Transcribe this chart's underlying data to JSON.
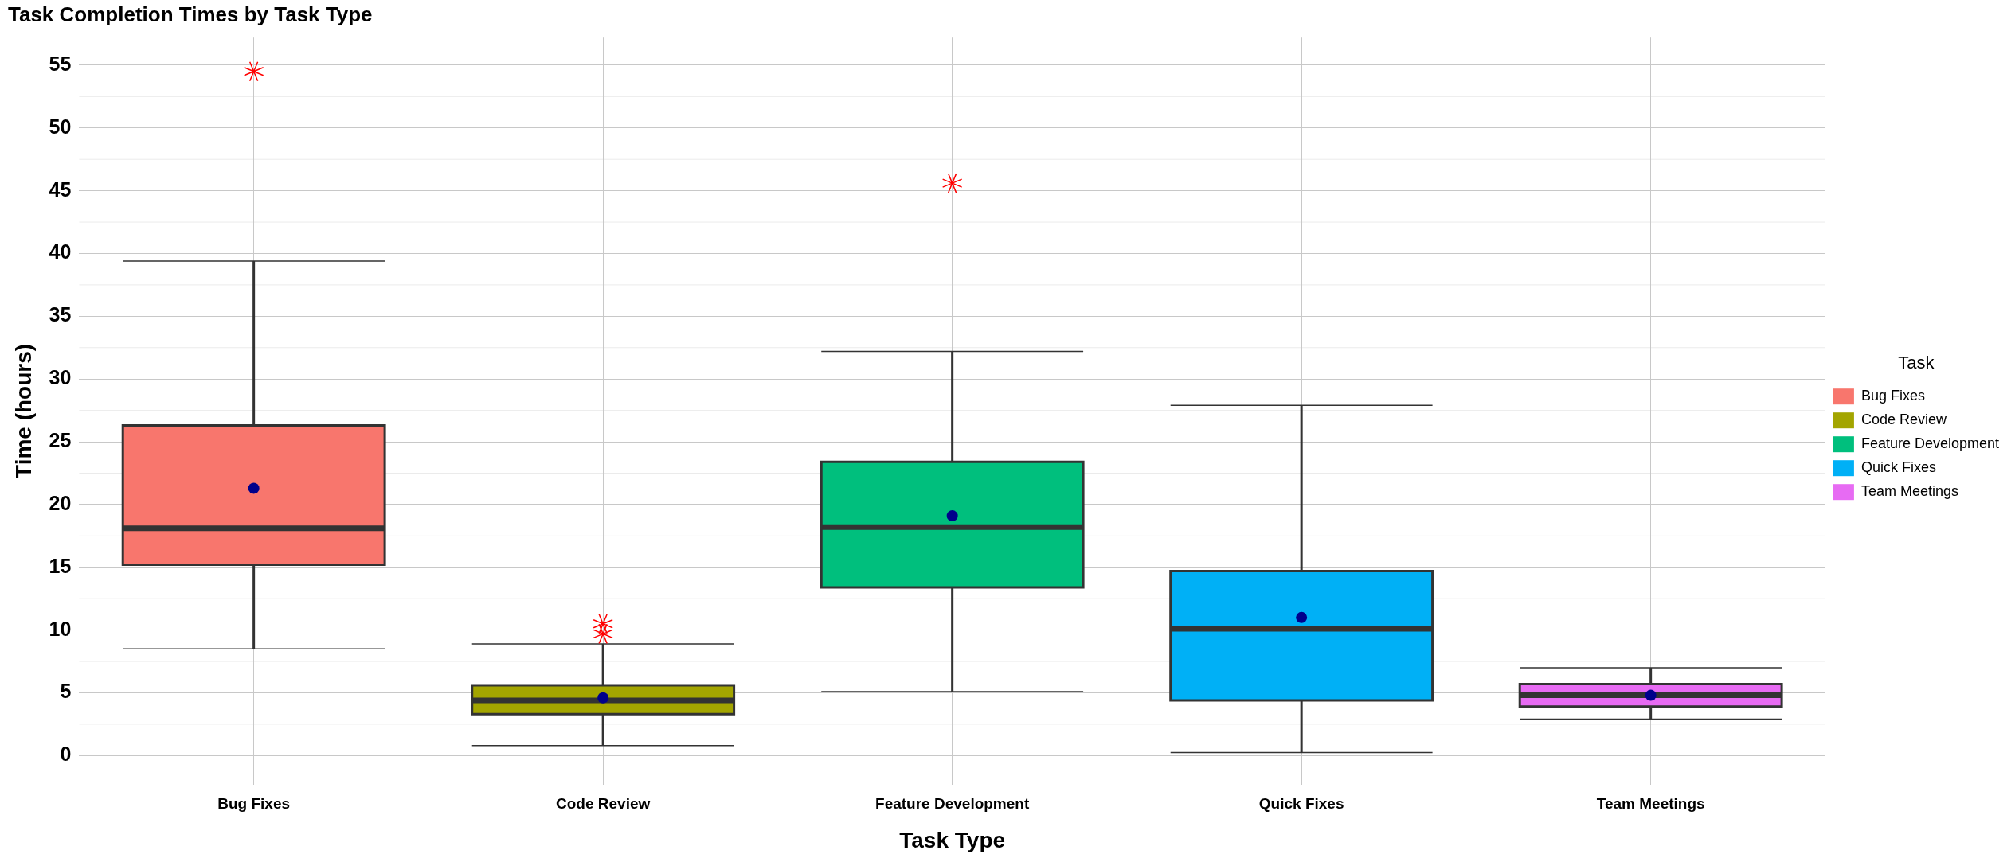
{
  "chart_data": {
    "type": "box",
    "title": "Task Completion Times by Task Type",
    "xlabel": "Task Type",
    "ylabel": "Time (hours)",
    "legend_title": "Task",
    "legend": "right",
    "grid": true,
    "categories": [
      "Bug Fixes",
      "Code Review",
      "Feature Development",
      "Quick Fixes",
      "Team Meetings"
    ],
    "series": [
      {
        "name": "Bug Fixes",
        "color": "#f8766d",
        "boxes": [
          {
            "low": 8.5,
            "q1": 15.2,
            "median": 18.1,
            "q3": 26.3,
            "high": 39.4,
            "mean": 21.3,
            "outliers": [
              54.5
            ]
          },
          null,
          null,
          null,
          null
        ]
      },
      {
        "name": "Code Review",
        "color": "#a3a500",
        "boxes": [
          null,
          {
            "low": 0.8,
            "q1": 3.3,
            "median": 4.4,
            "q3": 5.6,
            "high": 8.9,
            "mean": 4.6,
            "outliers": [
              10.5,
              9.7
            ]
          },
          null,
          null,
          null
        ]
      },
      {
        "name": "Feature Development",
        "color": "#00bf7d",
        "boxes": [
          null,
          null,
          {
            "low": 5.1,
            "q1": 13.4,
            "median": 18.2,
            "q3": 23.4,
            "high": 32.2,
            "mean": 19.1,
            "outliers": [
              45.6
            ]
          },
          null,
          null
        ]
      },
      {
        "name": "Quick Fixes",
        "color": "#00b0f6",
        "boxes": [
          null,
          null,
          null,
          {
            "low": 0.25,
            "q1": 4.4,
            "median": 10.1,
            "q3": 14.7,
            "high": 27.9,
            "mean": 11.0
          },
          null
        ]
      },
      {
        "name": "Team Meetings",
        "color": "#e76bf3",
        "boxes": [
          null,
          null,
          null,
          null,
          {
            "low": 2.9,
            "q1": 3.9,
            "median": 4.8,
            "q3": 5.7,
            "high": 7.0,
            "mean": 4.8
          }
        ]
      }
    ],
    "ylim": [
      -2.3,
      57.2
    ],
    "yticks": [
      0,
      5,
      10,
      15,
      20,
      25,
      30,
      35,
      40,
      45,
      50,
      55
    ]
  }
}
